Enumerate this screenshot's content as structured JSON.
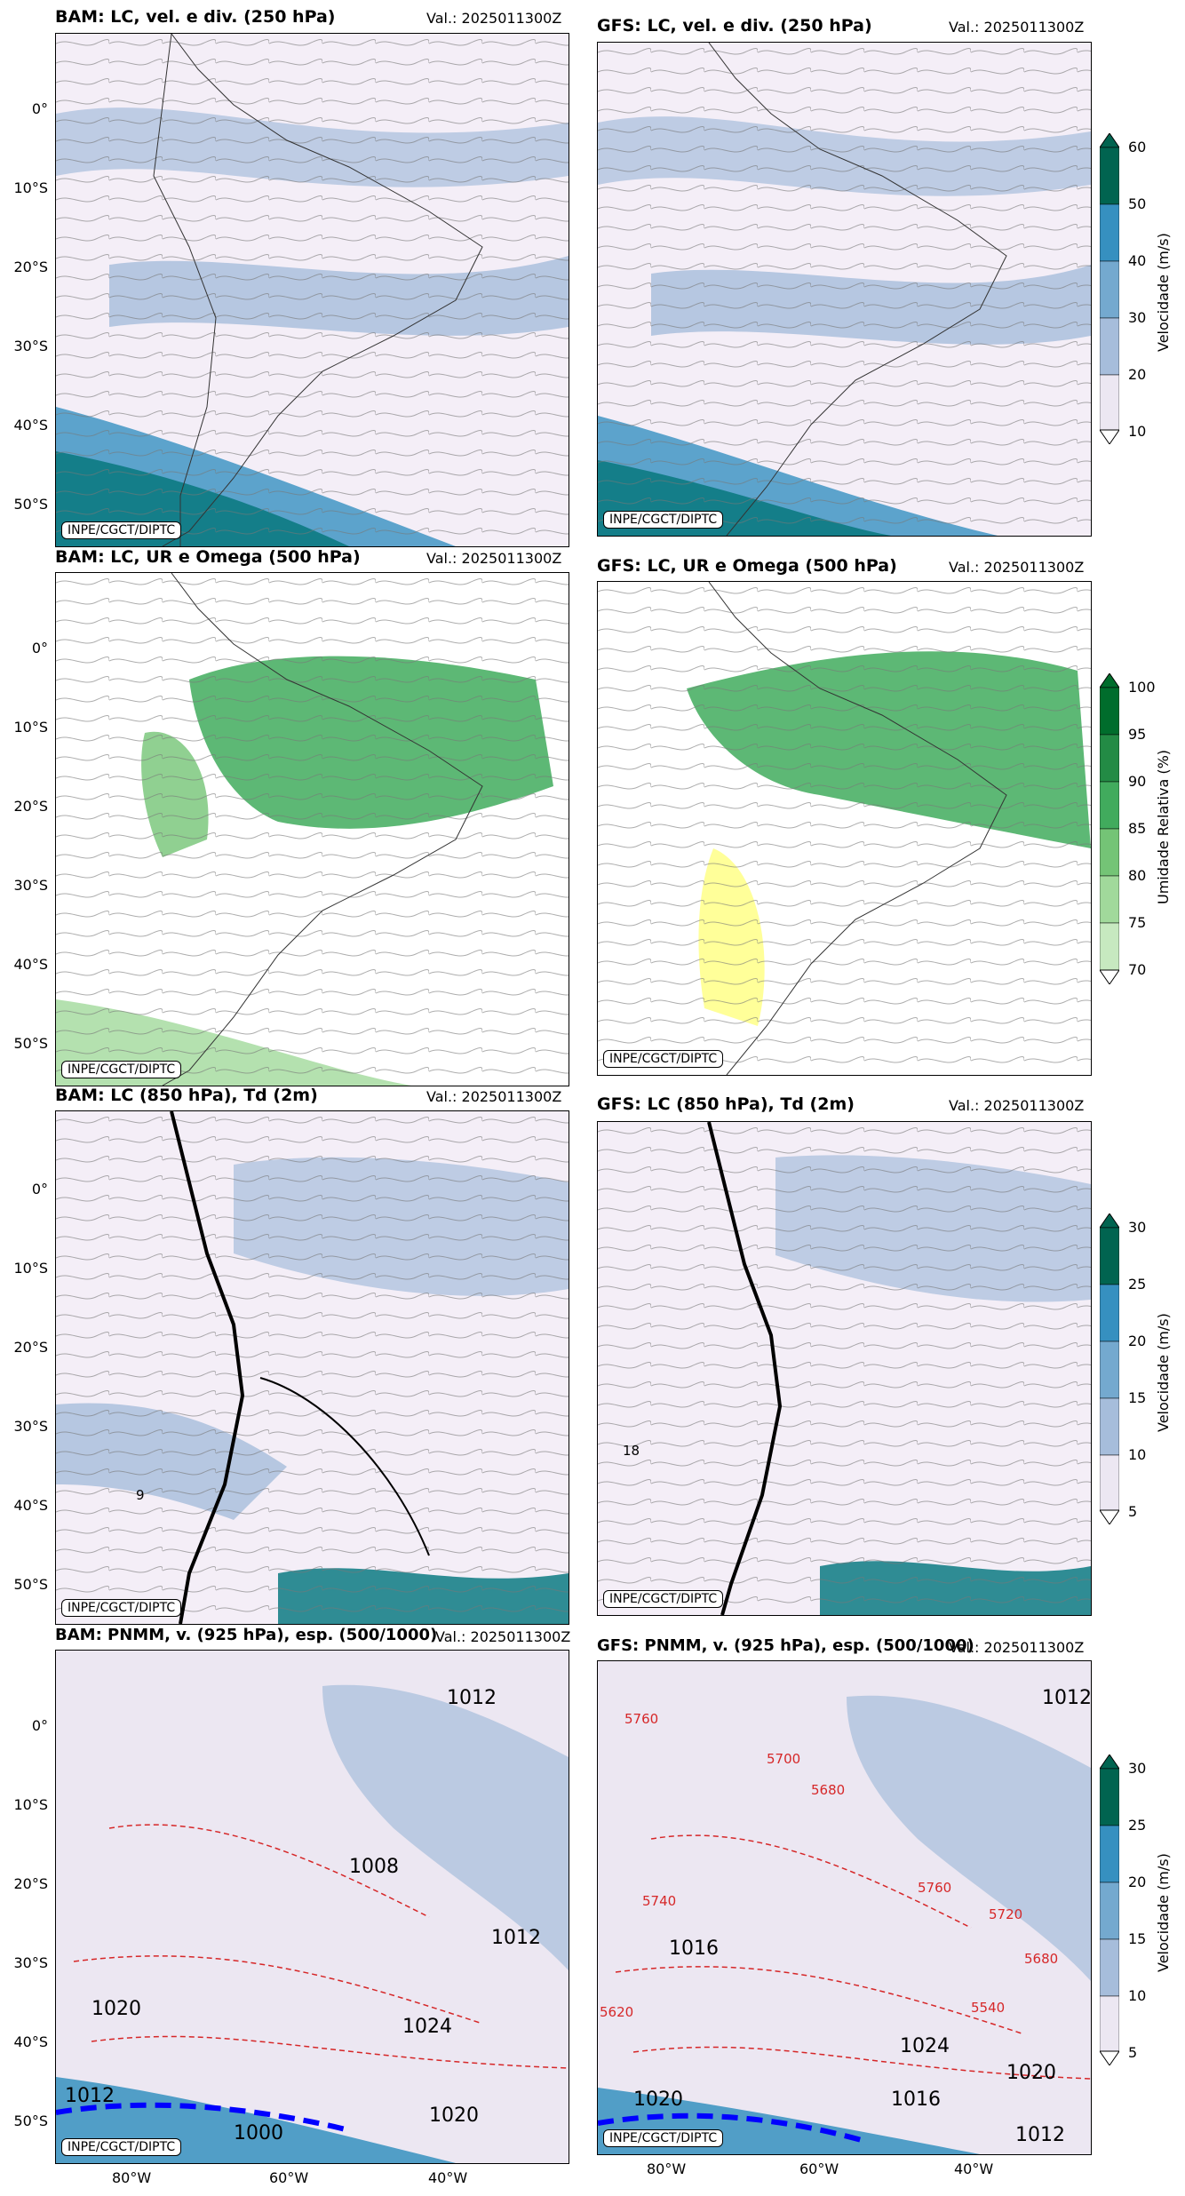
{
  "valid_label": "Val.: 2025011300Z",
  "credit": "INPE/CGCT/DIPTC",
  "lat_labels": [
    "0°",
    "10°S",
    "20°S",
    "30°S",
    "40°S",
    "50°S"
  ],
  "lon_labels": [
    "80°W",
    "60°W",
    "40°W"
  ],
  "rows": [
    {
      "left_title": "BAM: LC, vel. e div. (250 hPa)",
      "right_title": "GFS: LC, vel. e div. (250 hPa)",
      "colorbar": {
        "label": "Velocidade (m/s)",
        "ticks": [
          "10",
          "20",
          "30",
          "40",
          "50",
          "60"
        ],
        "colors": [
          "#ece7f2",
          "#a6bddb",
          "#74a9cf",
          "#3690c0",
          "#0c7a82",
          "#016450"
        ]
      }
    },
    {
      "left_title": "BAM: LC, UR e Omega (500 hPa)",
      "right_title": "GFS: LC, UR e Omega (500 hPa)",
      "colorbar": {
        "label": "Umidade Relativa (%)",
        "ticks": [
          "70",
          "75",
          "80",
          "85",
          "90",
          "95",
          "100"
        ],
        "colors": [
          "#ffffff",
          "#c7e9c0",
          "#a1d99b",
          "#74c476",
          "#41ab5d",
          "#238b45",
          "#006d2c"
        ]
      }
    },
    {
      "left_title": "BAM: LC (850 hPa), Td (2m)",
      "right_title": "GFS: LC (850 hPa), Td (2m)",
      "colorbar": {
        "label": "Velocidade (m/s)",
        "ticks": [
          "5",
          "10",
          "15",
          "20",
          "25",
          "30"
        ],
        "colors": [
          "#ece7f2",
          "#a6bddb",
          "#74a9cf",
          "#3690c0",
          "#0c7a82",
          "#016450"
        ]
      }
    },
    {
      "left_title": "BAM: PNMM, v. (925 hPa), esp. (500/1000)",
      "right_title": "GFS: PNMM, v. (925 hPa), esp. (500/1000)",
      "colorbar": {
        "label": "Velocidade (m/s)",
        "ticks": [
          "5",
          "10",
          "15",
          "20",
          "25",
          "30"
        ],
        "colors": [
          "#ece7f2",
          "#a6bddb",
          "#74a9cf",
          "#3690c0",
          "#0c7a82",
          "#016450"
        ]
      }
    }
  ],
  "pressure_labels_left": [
    "1012",
    "1008",
    "1012",
    "1024",
    "1020",
    "1020",
    "1012",
    "1000"
  ],
  "pressure_labels_right": [
    "1012",
    "1016",
    "1020",
    "1024",
    "1020",
    "1012",
    "1016"
  ],
  "thickness_labels_right": [
    "5760",
    "5700",
    "5680",
    "5740",
    "5760",
    "5720",
    "5680",
    "5540",
    "5620"
  ],
  "dewpoint_labels": [
    "18",
    "9"
  ]
}
